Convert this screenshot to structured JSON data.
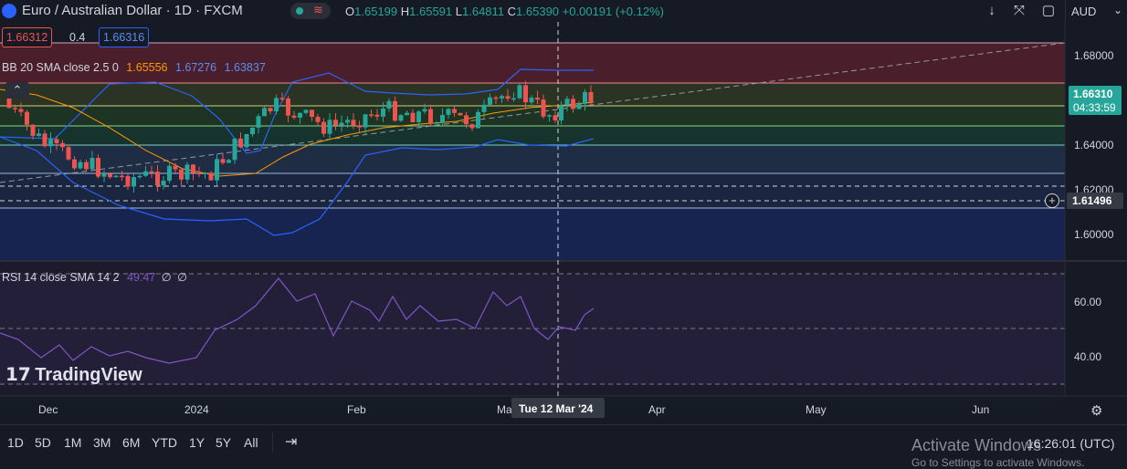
{
  "header": {
    "symbol_title": "Euro / Australian Dollar · 1D · FXCM",
    "open_label": "O",
    "open_value": "1.65199",
    "high_label": "H",
    "high_value": "1.65591",
    "low_label": "L",
    "low_value": "1.64811",
    "close_label": "C",
    "close_value": "1.65390",
    "change": "+0.00191 (+0.12%)",
    "currency": "AUD"
  },
  "trade": {
    "sell_price": "1.66312",
    "spread": "0.4",
    "buy_price": "1.66316"
  },
  "indicators": {
    "bb_label": "BB 20 SMA close 2.5 0",
    "bb_basis": "1.65556",
    "bb_upper": "1.67276",
    "bb_lower": "1.63837",
    "rsi_label": "RSI 14 close SMA 14 2",
    "rsi_value": "49.47",
    "rsi_extra1": "∅",
    "rsi_extra2": "∅"
  },
  "price_axis": {
    "ticks": [
      "1.68000",
      "1.64000",
      "1.62000",
      "1.60000"
    ],
    "current_price": "1.66310",
    "countdown": "04:33:59",
    "crosshair_price": "1.61496"
  },
  "rsi_axis": {
    "ticks": [
      "60.00",
      "40.00"
    ]
  },
  "time_axis": {
    "labels": [
      "Dec",
      "2024",
      "Feb",
      "Ma",
      "Apr",
      "May",
      "Jun"
    ],
    "crosshair_date": "Tue 12 Mar '24"
  },
  "timeframes": [
    "1D",
    "5D",
    "1M",
    "3M",
    "6M",
    "YTD",
    "1Y",
    "5Y",
    "All"
  ],
  "status": {
    "clock": "16:26:01 (UTC)",
    "activate_windows": "Activate Windows",
    "activate_sub": "Go to Settings to activate Windows."
  },
  "branding": {
    "logo_text": "TradingView"
  },
  "colors": {
    "background": "#161a25",
    "up_candle": "#26a69a",
    "down_candle": "#ef5350",
    "bb_band": "#2962ff",
    "bb_basis": "#ff9800",
    "rsi_line": "#7e57c2",
    "accent": "#2962ff"
  }
}
